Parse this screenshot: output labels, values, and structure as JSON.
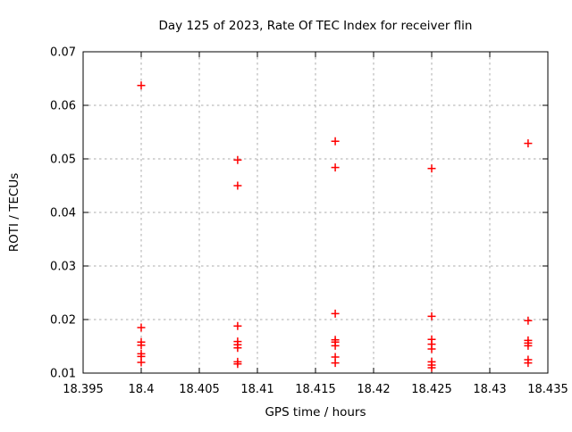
{
  "chart_data": {
    "type": "scatter",
    "title": "Day 125 of 2023, Rate Of TEC Index for receiver flin",
    "xlabel": "GPS time / hours",
    "ylabel": "ROTI / TECUs",
    "xlim": [
      18.395,
      18.435
    ],
    "ylim": [
      0.01,
      0.07
    ],
    "x_ticks": [
      "18.395",
      "18.4",
      "18.405",
      "18.41",
      "18.415",
      "18.42",
      "18.425",
      "18.43",
      "18.435"
    ],
    "y_ticks": [
      "0.01",
      "0.02",
      "0.03",
      "0.04",
      "0.05",
      "0.06",
      "0.07"
    ],
    "grid": true,
    "legend": "none",
    "marker": {
      "shape": "plus",
      "color": "#ff0000",
      "size": 9
    },
    "colors": {
      "grid": "#ababab",
      "axis": "#000000",
      "background": "#ffffff",
      "text": "#000000"
    },
    "series": [
      {
        "name": "ROTI",
        "points": [
          [
            18.4,
            0.0637
          ],
          [
            18.4,
            0.0185
          ],
          [
            18.4,
            0.0158
          ],
          [
            18.4,
            0.0152
          ],
          [
            18.4,
            0.0136
          ],
          [
            18.4,
            0.0131
          ],
          [
            18.4,
            0.012
          ],
          [
            18.4083,
            0.0498
          ],
          [
            18.4083,
            0.045
          ],
          [
            18.4083,
            0.0188
          ],
          [
            18.4083,
            0.0159
          ],
          [
            18.4083,
            0.0153
          ],
          [
            18.4083,
            0.0147
          ],
          [
            18.4083,
            0.0121
          ],
          [
            18.4083,
            0.0117
          ],
          [
            18.4167,
            0.0533
          ],
          [
            18.4167,
            0.0484
          ],
          [
            18.4167,
            0.0211
          ],
          [
            18.4167,
            0.0162
          ],
          [
            18.4167,
            0.0158
          ],
          [
            18.4167,
            0.0151
          ],
          [
            18.4167,
            0.013
          ],
          [
            18.4167,
            0.0119
          ],
          [
            18.425,
            0.0482
          ],
          [
            18.425,
            0.0206
          ],
          [
            18.425,
            0.0163
          ],
          [
            18.425,
            0.0154
          ],
          [
            18.425,
            0.0145
          ],
          [
            18.425,
            0.0121
          ],
          [
            18.425,
            0.0115
          ],
          [
            18.425,
            0.011
          ],
          [
            18.4333,
            0.0529
          ],
          [
            18.4333,
            0.0198
          ],
          [
            18.4333,
            0.0161
          ],
          [
            18.4333,
            0.0156
          ],
          [
            18.4333,
            0.0151
          ],
          [
            18.4333,
            0.0125
          ],
          [
            18.4333,
            0.0119
          ]
        ]
      }
    ]
  }
}
